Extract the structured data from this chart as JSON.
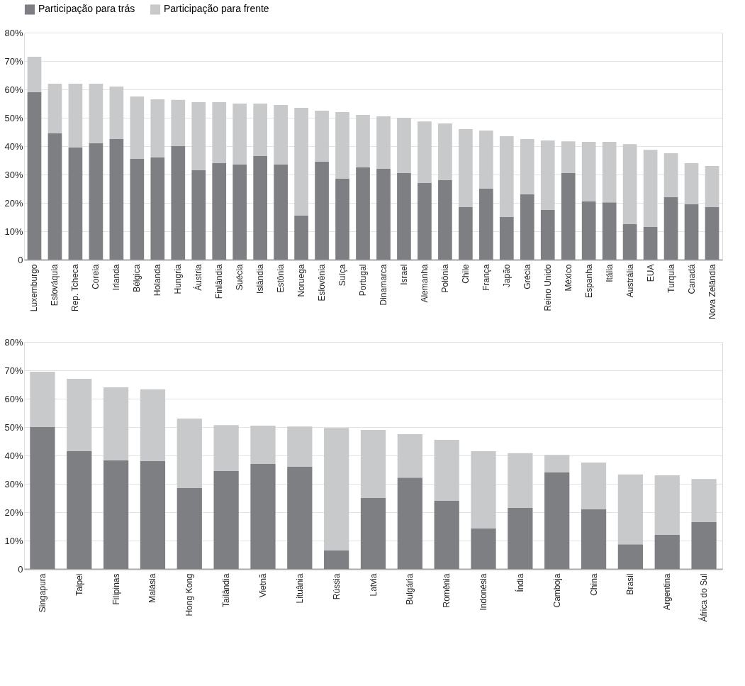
{
  "chart_data": [
    {
      "type": "bar",
      "stacked": true,
      "legend": "top",
      "grid": "y",
      "categories": [
        "Luxemburgo",
        "Eslováquia",
        "Rep. Tcheca",
        "Coreia",
        "Irlanda",
        "Bélgica",
        "Holanda",
        "Hungria",
        "Áustria",
        "Finlândia",
        "Suécia",
        "Islândia",
        "Estônia",
        "Noruega",
        "Eslovênia",
        "Suíça",
        "Portugal",
        "Dinamarca",
        "Israel",
        "Alemanha",
        "Polônia",
        "Chile",
        "França",
        "Japão",
        "Grécia",
        "Reino Unido",
        "México",
        "Espanha",
        "Itália",
        "Austrália",
        "EUA",
        "Turquia",
        "Canadá",
        "Nova Zelândia"
      ],
      "series": [
        {
          "name": "Participação para trás",
          "color": "#7e7f83",
          "values": [
            59,
            44.5,
            39.5,
            41,
            42.5,
            35.5,
            36,
            40,
            31.5,
            34,
            33.5,
            36.5,
            33.5,
            15.5,
            34.5,
            28.5,
            32.5,
            32,
            30.5,
            27,
            28,
            18.5,
            25,
            15,
            23,
            17.5,
            30.5,
            20.5,
            20.2,
            12.5,
            11.5,
            22,
            19.5,
            18.5
          ]
        },
        {
          "name": "Participação para frente",
          "color": "#c8c9cb",
          "values": [
            12.5,
            17.5,
            22.5,
            21,
            18.5,
            22,
            20.5,
            16.3,
            24,
            21.5,
            21.5,
            18.5,
            21,
            38,
            18,
            23.5,
            18.5,
            18.5,
            19.5,
            21.7,
            20,
            27.5,
            20.5,
            28.5,
            19.5,
            24.5,
            11.2,
            21,
            21.3,
            28.2,
            27.2,
            15.5,
            14.5,
            14.5
          ]
        }
      ],
      "ylim": [
        0,
        80
      ],
      "yticks": [
        {
          "value": 0,
          "label": "0"
        },
        {
          "value": 10,
          "label": "10%"
        },
        {
          "value": 20,
          "label": "20%"
        },
        {
          "value": 30,
          "label": "30%"
        },
        {
          "value": 40,
          "label": "40%"
        },
        {
          "value": 50,
          "label": "50%"
        },
        {
          "value": 60,
          "label": "60%"
        },
        {
          "value": 70,
          "label": "70%"
        },
        {
          "value": 80,
          "label": "80%"
        }
      ]
    },
    {
      "type": "bar",
      "stacked": true,
      "legend": false,
      "grid": "y",
      "categories": [
        "Singapura",
        "Taipei",
        "Filipinas",
        "Malásia",
        "Hong Kong",
        "Tailândia",
        "Vietnã",
        "Lituânia",
        "Rússia",
        "Latvia",
        "Bulgária",
        "Romênia",
        "Indonésia",
        "Índia",
        "Camboja",
        "China",
        "Brasil",
        "Argentina",
        "África do Sul"
      ],
      "series": [
        {
          "name": "Participação para trás",
          "color": "#7e7f83",
          "values": [
            50,
            41.5,
            38.3,
            38,
            28.5,
            34.5,
            37,
            36,
            6.5,
            25,
            32.2,
            24,
            14.3,
            21.5,
            34,
            21,
            8.7,
            12,
            16.5
          ]
        },
        {
          "name": "Participação para frente",
          "color": "#c8c9cb",
          "values": [
            19.5,
            25.5,
            25.7,
            25.3,
            24.5,
            16.2,
            13.5,
            14.2,
            43.2,
            24,
            15.3,
            21.5,
            27.2,
            19.3,
            6.2,
            16.5,
            24.6,
            21,
            15.2
          ]
        }
      ],
      "ylim": [
        0,
        80
      ],
      "yticks": [
        {
          "value": 0,
          "label": "0"
        },
        {
          "value": 10,
          "label": "10%"
        },
        {
          "value": 20,
          "label": "20%"
        },
        {
          "value": 30,
          "label": "30%"
        },
        {
          "value": 40,
          "label": "40%"
        },
        {
          "value": 50,
          "label": "50%"
        },
        {
          "value": 60,
          "label": "60%"
        },
        {
          "value": 70,
          "label": "70%"
        },
        {
          "value": 80,
          "label": "80%"
        }
      ]
    }
  ]
}
